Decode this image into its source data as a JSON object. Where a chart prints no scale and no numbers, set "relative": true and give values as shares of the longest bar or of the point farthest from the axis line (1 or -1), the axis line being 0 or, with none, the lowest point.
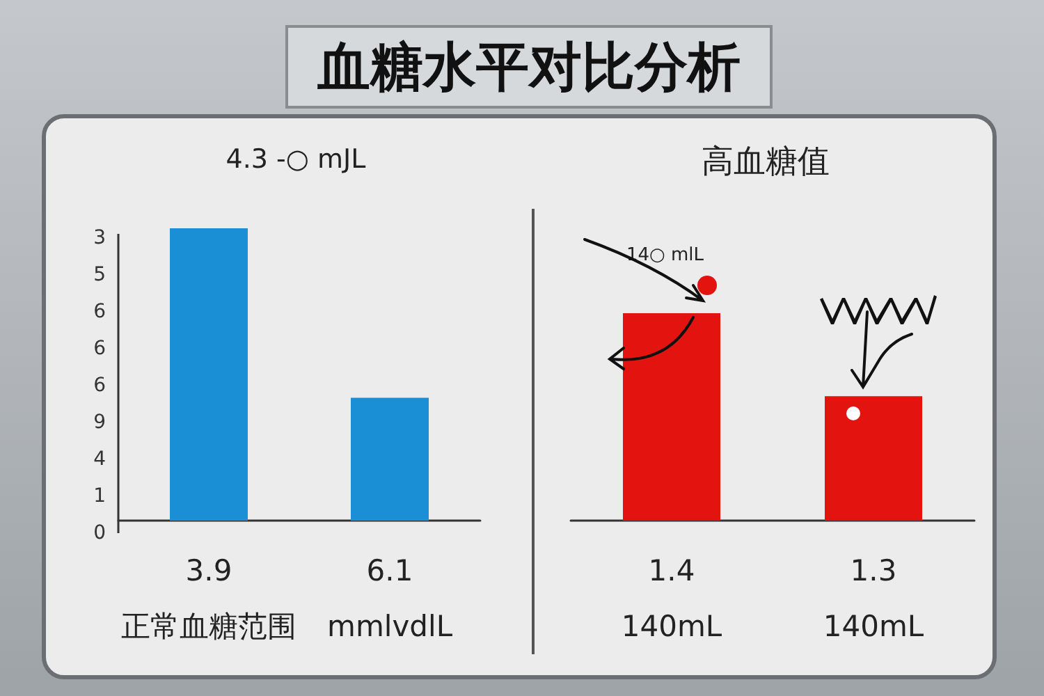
{
  "chart_data": [
    {
      "type": "bar",
      "title": "血糖水平对比分析",
      "subtitle": "4.3 -○ mJL",
      "categories": [
        "3.9\n正常血糖范围",
        "6.1\nmmlvdlL"
      ],
      "values": [
        1,
        0.42
      ],
      "color": "#1a8fd6",
      "relative": true,
      "annotations": [
        "3",
        "5",
        "6",
        "6",
        "6",
        "9",
        "4",
        "1",
        "0"
      ]
    },
    {
      "type": "bar",
      "title": "高血糖值",
      "categories": [
        "1.4\n140mL",
        "1.3\n140mL"
      ],
      "values": [
        1,
        0.6
      ],
      "color": "#e3140f",
      "relative": true,
      "tick_labels": "x",
      "annotations": [
        "14○ mlL"
      ]
    }
  ]
}
